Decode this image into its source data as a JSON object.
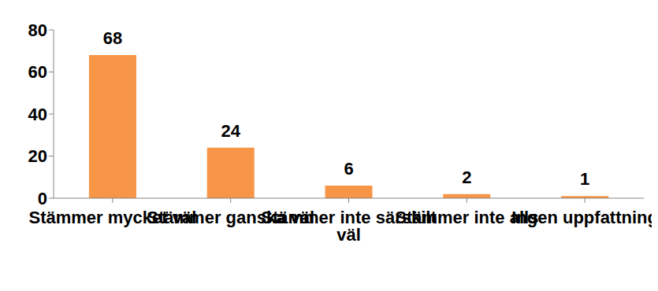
{
  "chart_data": {
    "type": "bar",
    "categories": [
      "Stämmer mycket väl",
      "Stämmer ganska väl",
      "Stämmer inte särskilt väl",
      "Stämmer inte alls",
      "Ingen uppfattning"
    ],
    "values": [
      68,
      24,
      6,
      2,
      1
    ],
    "color": "#f79646",
    "ylim": [
      0,
      80
    ],
    "yticks": [
      0,
      20,
      40,
      60,
      80
    ],
    "grid": false,
    "data_labels": true
  }
}
